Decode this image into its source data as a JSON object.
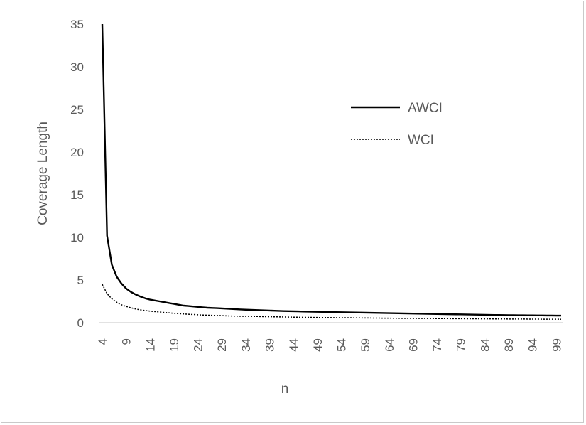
{
  "chart_data": {
    "type": "line",
    "xlabel": "n",
    "ylabel": "Coverage Length",
    "ylim": [
      0,
      35
    ],
    "yticks": [
      0,
      5,
      10,
      15,
      20,
      25,
      30,
      35
    ],
    "x": [
      4,
      5,
      6,
      7,
      8,
      9,
      10,
      11,
      12,
      13,
      14,
      15,
      16,
      17,
      18,
      19,
      20,
      21,
      22,
      23,
      24,
      25,
      26,
      27,
      28,
      29,
      30,
      31,
      32,
      33,
      34,
      35,
      36,
      37,
      38,
      39,
      40,
      41,
      42,
      43,
      44,
      45,
      46,
      47,
      48,
      49,
      50,
      51,
      52,
      53,
      54,
      55,
      56,
      57,
      58,
      59,
      60,
      61,
      62,
      63,
      64,
      65,
      66,
      67,
      68,
      69,
      70,
      71,
      72,
      73,
      74,
      75,
      76,
      77,
      78,
      79,
      80,
      81,
      82,
      83,
      84,
      85,
      86,
      87,
      88,
      89,
      90,
      91,
      92,
      93,
      94,
      95,
      96,
      97,
      98,
      99,
      100
    ],
    "xtick_labels": [
      "4",
      "9",
      "14",
      "19",
      "24",
      "29",
      "34",
      "39",
      "44",
      "49",
      "54",
      "59",
      "64",
      "69",
      "74",
      "79",
      "84",
      "89",
      "94",
      "99"
    ],
    "grid": false,
    "legend_position": "right",
    "series": [
      {
        "name": "AWCI",
        "style": "solid",
        "color": "#000000",
        "values": [
          35.0,
          10.2,
          6.8,
          5.4,
          4.6,
          4.0,
          3.6,
          3.3,
          3.05,
          2.85,
          2.7,
          2.6,
          2.5,
          2.4,
          2.3,
          2.2,
          2.1,
          2.0,
          1.95,
          1.9,
          1.85,
          1.8,
          1.75,
          1.72,
          1.7,
          1.67,
          1.64,
          1.61,
          1.58,
          1.55,
          1.52,
          1.5,
          1.48,
          1.46,
          1.44,
          1.42,
          1.4,
          1.38,
          1.36,
          1.35,
          1.34,
          1.33,
          1.31,
          1.3,
          1.29,
          1.28,
          1.27,
          1.25,
          1.24,
          1.23,
          1.22,
          1.21,
          1.2,
          1.19,
          1.18,
          1.17,
          1.16,
          1.15,
          1.14,
          1.13,
          1.12,
          1.11,
          1.1,
          1.09,
          1.08,
          1.07,
          1.06,
          1.05,
          1.04,
          1.03,
          1.02,
          1.01,
          1.0,
          0.99,
          0.98,
          0.97,
          0.96,
          0.95,
          0.94,
          0.93,
          0.92,
          0.91,
          0.9,
          0.9,
          0.89,
          0.88,
          0.88,
          0.87,
          0.87,
          0.86,
          0.86,
          0.85,
          0.85,
          0.84,
          0.84,
          0.83,
          0.83
        ]
      },
      {
        "name": "WCI",
        "style": "dotted",
        "color": "#000000",
        "values": [
          4.5,
          3.4,
          2.8,
          2.4,
          2.1,
          1.9,
          1.75,
          1.6,
          1.5,
          1.42,
          1.35,
          1.3,
          1.25,
          1.2,
          1.15,
          1.1,
          1.06,
          1.02,
          0.99,
          0.96,
          0.93,
          0.9,
          0.88,
          0.86,
          0.84,
          0.82,
          0.8,
          0.78,
          0.77,
          0.76,
          0.75,
          0.74,
          0.73,
          0.72,
          0.71,
          0.7,
          0.69,
          0.68,
          0.67,
          0.66,
          0.65,
          0.64,
          0.63,
          0.62,
          0.62,
          0.61,
          0.6,
          0.6,
          0.59,
          0.58,
          0.58,
          0.57,
          0.57,
          0.56,
          0.56,
          0.55,
          0.55,
          0.54,
          0.54,
          0.53,
          0.53,
          0.52,
          0.52,
          0.51,
          0.51,
          0.5,
          0.5,
          0.5,
          0.49,
          0.49,
          0.48,
          0.48,
          0.48,
          0.47,
          0.47,
          0.47,
          0.46,
          0.46,
          0.46,
          0.45,
          0.45,
          0.45,
          0.44,
          0.44,
          0.44,
          0.43,
          0.43,
          0.43,
          0.43,
          0.42,
          0.42,
          0.42,
          0.41,
          0.41,
          0.41,
          0.41,
          0.4
        ]
      }
    ]
  }
}
